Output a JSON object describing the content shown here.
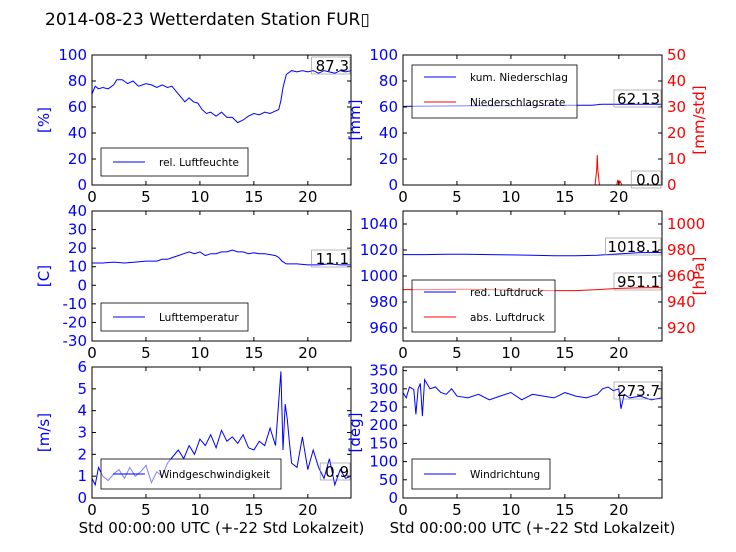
{
  "title": "2014-08-23 Wetterdaten Station FUR▯",
  "colors": {
    "primary": "#0000ff",
    "secondary": "#ff0000",
    "axis": "#000000"
  },
  "chart_data": [
    {
      "type": "line",
      "ylabel": "[%]",
      "xlim": [
        0,
        24
      ],
      "ylim": [
        0,
        100
      ],
      "xticks": [
        0,
        5,
        10,
        15,
        20
      ],
      "yticks": [
        0,
        20,
        40,
        60,
        80,
        100
      ],
      "legend": {
        "placement": "lower-left",
        "entries": [
          "rel. Luftfeuchte"
        ]
      },
      "readout": "87.3",
      "series": [
        {
          "name": "rel. Luftfeuchte",
          "color": "#0000ff",
          "x": [
            0,
            0.3,
            0.6,
            1,
            1.5,
            2,
            2.3,
            2.8,
            3.3,
            3.8,
            4.3,
            5,
            5.5,
            6,
            6.5,
            7,
            7.4,
            7.8,
            8.2,
            8.6,
            9,
            9.4,
            9.8,
            10.2,
            10.6,
            11,
            11.5,
            12,
            12.5,
            13,
            13.5,
            14,
            14.5,
            15,
            15.5,
            16,
            16.5,
            17,
            17.3,
            17.5,
            17.7,
            18,
            18.5,
            19,
            19.5,
            20,
            20.5,
            21,
            21.5,
            22,
            22.5,
            23,
            23.5,
            24
          ],
          "y": [
            70,
            76,
            74,
            75,
            74,
            77,
            81,
            81,
            78,
            80,
            76,
            78,
            77,
            75,
            77,
            75,
            76,
            72,
            68,
            64,
            67,
            64,
            63,
            58,
            55,
            56,
            53,
            56,
            52,
            52,
            48,
            50,
            53,
            55,
            54,
            56,
            55,
            57,
            58,
            65,
            75,
            85,
            88,
            87,
            88,
            87,
            88,
            86,
            88,
            87,
            86,
            88,
            87,
            88
          ]
        }
      ]
    },
    {
      "type": "line",
      "ylabel": "[mm]",
      "ylabel_right": "[mm/std]",
      "xlim": [
        0,
        24
      ],
      "ylim": [
        0,
        100
      ],
      "ylim_right": [
        0,
        50
      ],
      "xticks": [
        0,
        5,
        10,
        15,
        20
      ],
      "yticks": [
        0,
        20,
        40,
        60,
        80,
        100
      ],
      "yticks_right": [
        0,
        10,
        20,
        30,
        40,
        50
      ],
      "legend": {
        "placement": "upper-left",
        "entries": [
          "kum. Niederschlag",
          "Niederschlagsrate"
        ]
      },
      "readouts": [
        "62.13",
        "0.0"
      ],
      "series": [
        {
          "name": "kum. Niederschlag",
          "color": "#0000ff",
          "axis": "left",
          "x": [
            0,
            2,
            4,
            6,
            8,
            10,
            12,
            14,
            16,
            17.5,
            18,
            18.2,
            18.5,
            20,
            24
          ],
          "y": [
            60.5,
            60.7,
            60.8,
            60.9,
            61,
            61,
            61.1,
            61.2,
            61.3,
            61.4,
            61.8,
            62,
            62.05,
            62.1,
            62.13
          ]
        },
        {
          "name": "Niederschlagsrate",
          "color": "#ff0000",
          "axis": "right",
          "x": [
            0,
            17.8,
            17.95,
            18.0,
            18.05,
            18.2,
            19.8,
            19.9,
            20.0,
            20.1,
            20.3,
            24
          ],
          "y": [
            0,
            0,
            6,
            11.5,
            6,
            0,
            0,
            2,
            0,
            1.5,
            0,
            0
          ]
        }
      ]
    },
    {
      "type": "line",
      "ylabel": "[C]",
      "xlim": [
        0,
        24
      ],
      "ylim": [
        -30,
        40
      ],
      "xticks": [
        0,
        5,
        10,
        15,
        20
      ],
      "yticks": [
        -30,
        -20,
        -10,
        0,
        10,
        20,
        30,
        40
      ],
      "legend": {
        "placement": "lower-left",
        "entries": [
          "Lufttemperatur"
        ]
      },
      "readout": "11.1",
      "series": [
        {
          "name": "Lufttemperatur",
          "color": "#0000ff",
          "x": [
            0,
            1,
            2,
            3,
            4,
            5,
            6,
            6.5,
            7,
            7.5,
            8,
            8.5,
            9,
            9.5,
            10,
            10.5,
            11,
            11.5,
            12,
            12.5,
            13,
            13.5,
            14,
            14.5,
            15,
            15.5,
            16,
            16.5,
            17,
            17.3,
            17.6,
            18,
            19,
            20,
            21,
            22,
            23,
            24
          ],
          "y": [
            12,
            12,
            12.5,
            12,
            12.5,
            13,
            13,
            14,
            14,
            15,
            16,
            17,
            18,
            17,
            18,
            16,
            17,
            17,
            18,
            18,
            19,
            18,
            18,
            17,
            17.5,
            17,
            17,
            16.5,
            16,
            15,
            13,
            11.5,
            11.5,
            11,
            11,
            11.5,
            11,
            11
          ]
        }
      ]
    },
    {
      "type": "line",
      "ylabel": "",
      "ylabel_right": "[hPa]",
      "xlim": [
        0,
        24
      ],
      "ylim": [
        950,
        1050
      ],
      "ylim_right": [
        910,
        1010
      ],
      "xticks": [
        0,
        5,
        10,
        15,
        20
      ],
      "yticks": [
        960,
        980,
        1000,
        1020,
        1040
      ],
      "yticks_right": [
        920,
        940,
        960,
        980,
        1000
      ],
      "legend": {
        "placement": "lower-left",
        "entries": [
          "red. Luftdruck",
          "abs. Luftdruck"
        ]
      },
      "readouts": [
        "1018.1",
        "951.1"
      ],
      "series": [
        {
          "name": "red. Luftdruck",
          "color": "#0000ff",
          "axis": "left",
          "x": [
            0,
            2,
            4,
            6,
            8,
            10,
            12,
            14,
            16,
            18,
            20,
            22,
            24
          ],
          "y": [
            1016.5,
            1016.5,
            1016.7,
            1016.8,
            1016.5,
            1016.2,
            1016,
            1015.5,
            1015.5,
            1016,
            1017,
            1018,
            1018.1
          ]
        },
        {
          "name": "abs. Luftdruck",
          "color": "#ff0000",
          "axis": "right",
          "x": [
            0,
            2,
            4,
            6,
            8,
            10,
            12,
            14,
            16,
            18,
            20,
            22,
            24
          ],
          "y": [
            949.5,
            949.5,
            949.7,
            949.8,
            949.5,
            949.2,
            949,
            948.8,
            948.8,
            949.5,
            950.5,
            951,
            951.1
          ]
        }
      ]
    },
    {
      "type": "line",
      "ylabel": "[m/s]",
      "xlabel": "Std 00:00:00 UTC (+-22 Std Lokalzeit)",
      "xlim": [
        0,
        24
      ],
      "ylim": [
        0,
        6
      ],
      "xticks": [
        0,
        5,
        10,
        15,
        20
      ],
      "yticks": [
        0,
        1,
        2,
        3,
        4,
        5,
        6
      ],
      "legend": {
        "placement": "lower-center",
        "entries": [
          "Windgeschwindigkeit"
        ]
      },
      "readout": "0.9",
      "series": [
        {
          "name": "Windgeschwindigkeit",
          "color": "#0000ff",
          "x": [
            0,
            0.3,
            0.6,
            1,
            1.5,
            2,
            2.5,
            3,
            3.5,
            4,
            4.5,
            5,
            5.5,
            6,
            6.5,
            7,
            7.5,
            8,
            8.5,
            9,
            9.5,
            10,
            10.5,
            11,
            11.5,
            12,
            12.5,
            13,
            13.5,
            14,
            14.5,
            15,
            15.5,
            16,
            16.5,
            17,
            17.5,
            17.7,
            17.9,
            18.1,
            18.3,
            18.5,
            19,
            19.5,
            20,
            20.5,
            21,
            21.5,
            22,
            22.5,
            23,
            23.5,
            24
          ],
          "y": [
            0.9,
            0.6,
            1.4,
            1,
            0.8,
            1.1,
            1.3,
            0.9,
            1.4,
            1,
            1.2,
            1.5,
            0.7,
            1.2,
            1,
            1.6,
            1.9,
            2.2,
            1.8,
            2.4,
            2,
            2.7,
            2.4,
            2.9,
            2.3,
            3.1,
            2.6,
            2.8,
            2.5,
            2.9,
            2.3,
            2.2,
            2.6,
            2.4,
            3.2,
            2.4,
            5.8,
            2.2,
            4.3,
            3.6,
            2.5,
            1.6,
            1.4,
            2.8,
            1.3,
            2.2,
            1.4,
            0.9,
            1.8,
            0.6,
            1.3,
            0.9,
            1
          ]
        }
      ]
    },
    {
      "type": "line",
      "ylabel": "[deg]",
      "xlabel": "Std 00:00:00 UTC (+-22 Std Lokalzeit)",
      "xlim": [
        0,
        24
      ],
      "ylim": [
        0,
        360
      ],
      "xticks": [
        0,
        5,
        10,
        15,
        20
      ],
      "yticks": [
        0,
        50,
        100,
        150,
        200,
        250,
        300,
        350
      ],
      "legend": {
        "placement": "lower-left",
        "entries": [
          "Windrichtung"
        ]
      },
      "readout": "273.7",
      "series": [
        {
          "name": "Windrichtung",
          "color": "#0000ff",
          "x": [
            0,
            0.3,
            0.6,
            1,
            1.2,
            1.4,
            1.6,
            1.8,
            2,
            2.5,
            3,
            3.5,
            4,
            4.5,
            5,
            6,
            7,
            8,
            9,
            10,
            11,
            12,
            13,
            14,
            15,
            16,
            17,
            18,
            18.5,
            19,
            19.5,
            20,
            20.2,
            20.5,
            21,
            22,
            23,
            24
          ],
          "y": [
            290,
            275,
            305,
            298,
            230,
            300,
            315,
            225,
            325,
            300,
            305,
            290,
            285,
            300,
            280,
            275,
            285,
            270,
            280,
            290,
            270,
            285,
            280,
            275,
            290,
            280,
            275,
            285,
            300,
            305,
            295,
            300,
            245,
            285,
            275,
            280,
            270,
            275
          ]
        }
      ]
    }
  ]
}
